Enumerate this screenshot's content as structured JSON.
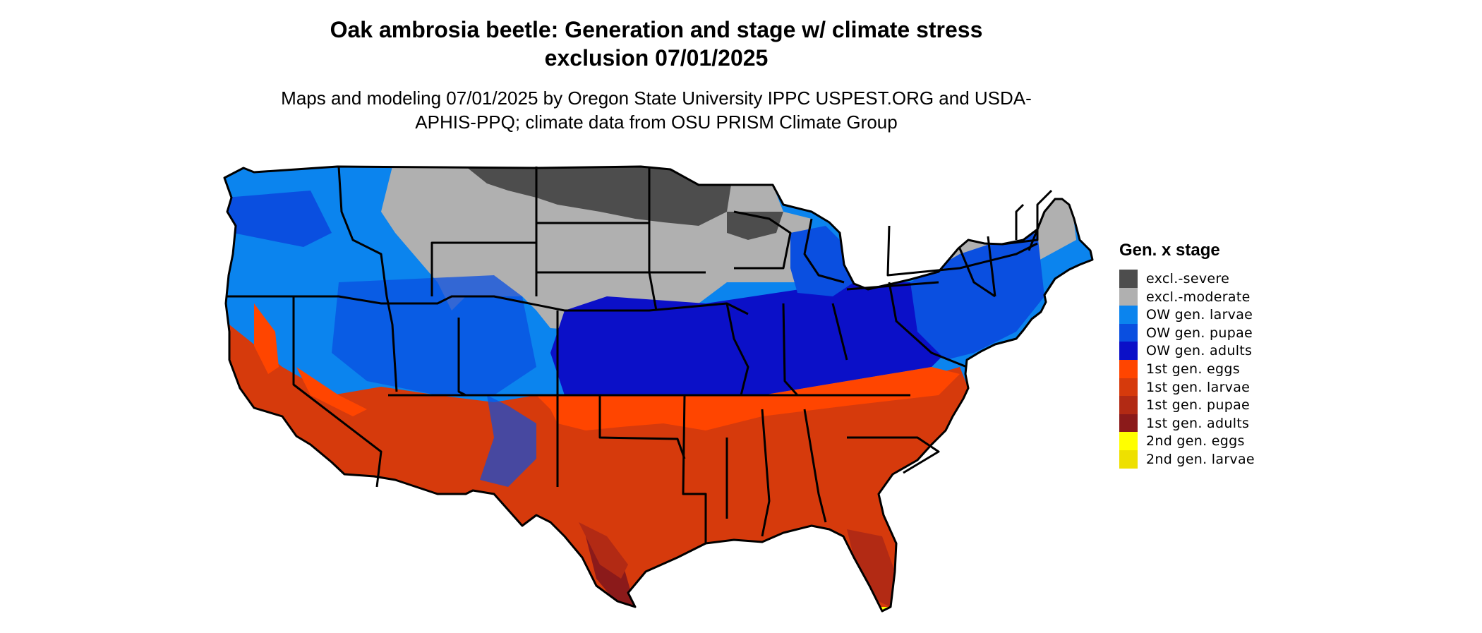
{
  "title": "Oak ambrosia beetle: Generation and stage w/ climate stress exclusion 07/01/2025",
  "subtitle": "Maps and modeling 07/01/2025 by Oregon State University IPPC USPEST.ORG and USDA-APHIS-PPQ; climate data from OSU PRISM Climate Group",
  "legend": {
    "title": "Gen. x stage",
    "items": [
      {
        "label": "excl.-severe",
        "color": "#4d4d4d"
      },
      {
        "label": "excl.-moderate",
        "color": "#b0b0b0"
      },
      {
        "label": "OW gen. larvae",
        "color": "#0b84ee"
      },
      {
        "label": "OW gen. pupae",
        "color": "#0a4fe0"
      },
      {
        "label": "OW gen. adults",
        "color": "#0b10c8"
      },
      {
        "label": "1st gen. eggs",
        "color": "#ff4500"
      },
      {
        "label": "1st gen. larvae",
        "color": "#d63a0c"
      },
      {
        "label": "1st gen. pupae",
        "color": "#b22a14"
      },
      {
        "label": "1st gen. adults",
        "color": "#8b1a1a"
      },
      {
        "label": "2nd gen. eggs",
        "color": "#ffff00"
      },
      {
        "label": "2nd gen. larvae",
        "color": "#eee000"
      }
    ]
  },
  "map": {
    "region": "Contiguous United States",
    "state_boundary_color": "#000000"
  }
}
